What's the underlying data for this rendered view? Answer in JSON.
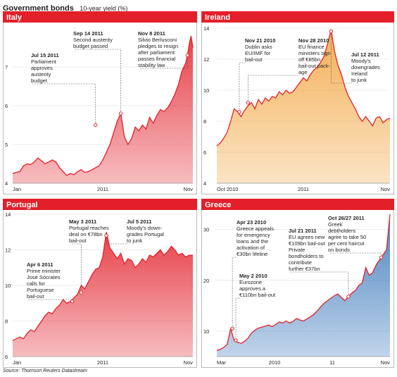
{
  "header": {
    "title": "Government bonds",
    "subtitle": "10-year yield (%)"
  },
  "source": "Source: Thomson Reuters Datastream",
  "colors": {
    "red": "#e3202a",
    "line": "#e3202a",
    "green": "#2f8a5a",
    "orange": "#f2a33a",
    "blue": "#2d6fb7",
    "axis": "#999999",
    "text": "#231f20"
  },
  "chart_data": [
    {
      "type": "line",
      "title": "Italy",
      "fill": "red",
      "ylim": [
        4,
        8
      ],
      "y_ticks": [
        "4",
        "5",
        "6",
        "7"
      ],
      "x_ticks": [
        "Jan",
        "2011",
        "Nov"
      ],
      "series": [
        {
          "x": [
            0,
            0.02,
            0.04,
            0.06,
            0.08,
            0.1,
            0.12,
            0.14,
            0.16,
            0.18,
            0.2,
            0.22,
            0.24,
            0.26,
            0.28,
            0.3,
            0.32,
            0.34,
            0.36,
            0.38,
            0.4,
            0.42,
            0.44,
            0.46,
            0.48,
            0.5,
            0.52,
            0.54,
            0.56,
            0.58,
            0.6,
            0.62,
            0.64,
            0.66,
            0.68,
            0.7,
            0.72,
            0.74,
            0.76,
            0.78,
            0.8,
            0.82,
            0.84,
            0.86,
            0.88,
            0.9,
            0.92,
            0.94,
            0.96,
            0.97,
            0.98,
            0.99,
            1.0
          ],
          "values": [
            4.25,
            4.28,
            4.3,
            4.45,
            4.5,
            4.48,
            4.55,
            4.65,
            4.58,
            4.5,
            4.55,
            4.6,
            4.55,
            4.4,
            4.3,
            4.2,
            4.25,
            4.22,
            4.3,
            4.35,
            4.28,
            4.3,
            4.35,
            4.4,
            4.45,
            4.6,
            4.8,
            5.0,
            5.3,
            5.6,
            5.8,
            5.2,
            5.0,
            5.15,
            5.45,
            5.35,
            5.5,
            5.4,
            5.7,
            5.55,
            5.75,
            5.9,
            5.85,
            5.95,
            6.1,
            6.3,
            6.55,
            6.9,
            7.1,
            7.3,
            7.6,
            7.8,
            7.5
          ]
        }
      ],
      "markers": [
        {
          "date": "Jul 15 2011",
          "text": [
            "Parliament",
            "approves",
            "austerity",
            "budget"
          ],
          "x": 0.46,
          "y": 5.5
        },
        {
          "date": "Sep 14 2011",
          "text": [
            "Second austerity",
            "budget passed"
          ],
          "x": 0.6,
          "y": 5.8
        },
        {
          "date": "Nov 8 2011",
          "text": [
            "Silvio Berlusconi",
            "pledges to resign",
            "after parliament",
            "passes financial",
            "stability law"
          ],
          "x": 0.97,
          "y": 7.3
        }
      ]
    },
    {
      "type": "line",
      "title": "Ireland",
      "fill": "orange",
      "ylim": [
        4,
        14
      ],
      "y_ticks": [
        "4",
        "6",
        "8",
        "10",
        "12",
        "14"
      ],
      "x_ticks": [
        "Oct 2010",
        "2011",
        "Nov"
      ],
      "series": [
        {
          "x": [
            0,
            0.02,
            0.04,
            0.06,
            0.08,
            0.1,
            0.12,
            0.14,
            0.16,
            0.18,
            0.2,
            0.22,
            0.24,
            0.26,
            0.28,
            0.3,
            0.32,
            0.34,
            0.36,
            0.38,
            0.4,
            0.42,
            0.44,
            0.46,
            0.48,
            0.5,
            0.52,
            0.54,
            0.56,
            0.58,
            0.6,
            0.62,
            0.64,
            0.66,
            0.68,
            0.7,
            0.72,
            0.74,
            0.76,
            0.78,
            0.8,
            0.82,
            0.84,
            0.86,
            0.88,
            0.9,
            0.92,
            0.94,
            0.96,
            0.98,
            1.0
          ],
          "values": [
            6.4,
            6.6,
            6.9,
            7.3,
            8.0,
            8.8,
            8.6,
            8.3,
            8.7,
            9.0,
            9.2,
            8.8,
            9.4,
            9.1,
            9.5,
            9.3,
            9.6,
            9.5,
            9.9,
            9.7,
            10.0,
            9.8,
            9.9,
            10.2,
            10.5,
            10.8,
            10.6,
            11.0,
            11.3,
            11.5,
            11.8,
            12.2,
            13.0,
            13.9,
            12.5,
            11.6,
            11.0,
            10.2,
            9.6,
            9.2,
            8.8,
            8.3,
            8.0,
            8.3,
            8.0,
            7.7,
            8.2,
            8.3,
            7.9,
            8.1,
            8.2
          ]
        }
      ],
      "markers": [
        {
          "date": "Nov 21 2010",
          "text": [
            "Dublin asks",
            "EU/IMF for",
            "bail-out"
          ],
          "x": 0.13,
          "y": 8.6
        },
        {
          "date": "Nov 28 2010",
          "text": [
            "EU finance",
            "ministers sign",
            "off €85bn",
            "bail-out pack-",
            "age"
          ],
          "x": 0.18,
          "y": 9.2
        },
        {
          "date": "Jul 12 2011",
          "text": [
            "Moody's",
            "downgrades",
            "Ireland",
            "to junk"
          ],
          "x": 0.66,
          "y": 13.8
        }
      ]
    },
    {
      "type": "line",
      "title": "Portugal",
      "fill": "red",
      "ylim": [
        6,
        14
      ],
      "y_ticks": [
        "6",
        "8",
        "10",
        "12",
        "14"
      ],
      "x_ticks": [
        "Jan",
        "2011",
        "Nov"
      ],
      "series": [
        {
          "x": [
            0,
            0.02,
            0.04,
            0.06,
            0.08,
            0.1,
            0.12,
            0.14,
            0.16,
            0.18,
            0.2,
            0.22,
            0.24,
            0.26,
            0.28,
            0.3,
            0.32,
            0.34,
            0.36,
            0.38,
            0.4,
            0.42,
            0.44,
            0.46,
            0.48,
            0.5,
            0.52,
            0.54,
            0.56,
            0.58,
            0.6,
            0.62,
            0.64,
            0.66,
            0.68,
            0.7,
            0.72,
            0.74,
            0.76,
            0.78,
            0.8,
            0.82,
            0.84,
            0.86,
            0.88,
            0.9,
            0.92,
            0.94,
            0.96,
            0.98,
            1.0
          ],
          "values": [
            6.9,
            7.0,
            7.1,
            7.0,
            7.3,
            7.5,
            7.4,
            7.7,
            8.0,
            8.3,
            8.5,
            8.4,
            8.7,
            8.9,
            9.2,
            9.0,
            9.1,
            9.3,
            9.5,
            10.0,
            9.8,
            10.2,
            10.6,
            10.9,
            11.0,
            11.6,
            13.0,
            12.1,
            11.8,
            11.5,
            11.8,
            11.2,
            11.5,
            11.4,
            11.0,
            11.2,
            11.5,
            11.3,
            11.7,
            11.6,
            11.8,
            12.0,
            11.7,
            11.9,
            12.2,
            12.0,
            11.7,
            11.8,
            11.6,
            11.7,
            11.7
          ]
        }
      ],
      "markers": [
        {
          "date": "Apr 6 2011",
          "text": [
            "Prime minister",
            "José Sócrates",
            "calls for",
            "Portuguese",
            "bail-out"
          ],
          "x": 0.33,
          "y": 9.1
        },
        {
          "date": "May 3 2011",
          "text": [
            "Portugal reaches",
            "deal on €78bn",
            "bail-out"
          ],
          "x": 0.38,
          "y": 9.6
        },
        {
          "date": "Jul 5 2011",
          "text": [
            "Moody's down-",
            "grades Portugal",
            "to junk"
          ],
          "x": 0.52,
          "y": 12.8
        }
      ]
    },
    {
      "type": "line",
      "title": "Greece",
      "fill": "blue",
      "ylim": [
        5,
        33
      ],
      "y_ticks": [
        "10",
        "20",
        "30"
      ],
      "x_ticks": [
        "Mar",
        "2010",
        "11",
        "Nov"
      ],
      "series": [
        {
          "x": [
            0,
            0.02,
            0.04,
            0.06,
            0.08,
            0.1,
            0.12,
            0.14,
            0.16,
            0.18,
            0.2,
            0.22,
            0.24,
            0.26,
            0.28,
            0.3,
            0.32,
            0.34,
            0.36,
            0.38,
            0.4,
            0.42,
            0.44,
            0.46,
            0.48,
            0.5,
            0.52,
            0.54,
            0.56,
            0.58,
            0.6,
            0.62,
            0.64,
            0.66,
            0.68,
            0.7,
            0.72,
            0.74,
            0.76,
            0.78,
            0.8,
            0.82,
            0.84,
            0.86,
            0.88,
            0.9,
            0.92,
            0.94,
            0.96,
            0.98,
            1.0
          ],
          "values": [
            6.2,
            6.4,
            6.8,
            7.4,
            10.5,
            8.2,
            7.8,
            7.6,
            8.0,
            8.6,
            9.6,
            10.2,
            10.6,
            10.8,
            11.0,
            11.2,
            10.9,
            11.3,
            11.8,
            11.6,
            12.0,
            11.6,
            11.9,
            12.5,
            12.2,
            12.0,
            12.4,
            12.8,
            13.3,
            14.0,
            14.8,
            15.5,
            16.0,
            16.5,
            17.0,
            17.3,
            16.6,
            16.0,
            16.8,
            17.5,
            18.0,
            19.0,
            19.5,
            22.5,
            21.0,
            21.5,
            23.0,
            24.0,
            25.0,
            26.0,
            33.0
          ]
        }
      ],
      "markers": [
        {
          "date": "Apr 23 2010",
          "text": [
            "Greece appeals",
            "for emergency",
            "loans and the",
            "activation of",
            "€30bn lifeline"
          ],
          "x": 0.09,
          "y": 10.5
        },
        {
          "date": "May 2 2010",
          "text": [
            "Eurozone",
            "approves a",
            "€110bn bail-out"
          ],
          "x": 0.11,
          "y": 8.2
        },
        {
          "date": "Jul 21 2011",
          "text": [
            "EU agrees new",
            "€109bn bail-out",
            "Private",
            "bondholders to",
            "contribute",
            "further €37bn"
          ],
          "x": 0.76,
          "y": 16.8
        },
        {
          "date": "Oct 26/27 2011",
          "text": [
            "Greek",
            "debtholders",
            "agree to take 50",
            "per cent haircut",
            "on bonds"
          ],
          "x": 0.95,
          "y": 24.5
        }
      ]
    }
  ]
}
